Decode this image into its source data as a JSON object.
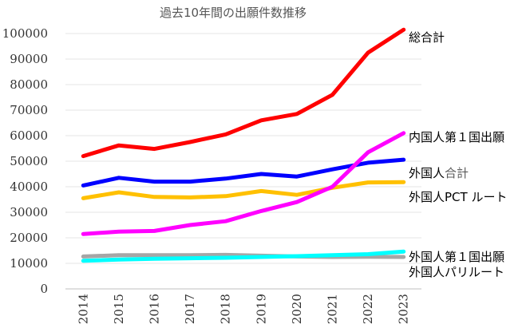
{
  "chart_data": {
    "type": "line",
    "title": "過去10年間の出願件数推移",
    "xlabel": "",
    "ylabel": "",
    "ylim": [
      0,
      100000
    ],
    "yticks": [
      "0",
      "10000",
      "20000",
      "30000",
      "40000",
      "50000",
      "60000",
      "70000",
      "80000",
      "90000",
      "100000"
    ],
    "categories": [
      "2014",
      "2015",
      "2016",
      "2017",
      "2018",
      "2019",
      "2020",
      "2021",
      "2022",
      "2023"
    ],
    "grid": true,
    "legend": "inline-right",
    "series": [
      {
        "name": "総合計",
        "color": "#ff0000",
        "values": [
          52000,
          56200,
          54800,
          57500,
          60500,
          66000,
          68500,
          76000,
          92500,
          101500
        ]
      },
      {
        "name": "内国人第１国出願",
        "color": "#ff00ff",
        "values": [
          21500,
          22400,
          22700,
          25000,
          26500,
          30500,
          34000,
          40000,
          53500,
          61000
        ]
      },
      {
        "name": "外国人合計",
        "color": "#0000ff",
        "values": [
          40500,
          43500,
          42000,
          42000,
          43200,
          45000,
          44000,
          46800,
          49400,
          50600
        ]
      },
      {
        "name": "外国人PCT ルート",
        "color": "#ffc000",
        "values": [
          35500,
          37800,
          36000,
          35800,
          36300,
          38300,
          36800,
          39600,
          41700,
          41800
        ]
      },
      {
        "name": "外国人第１国出願",
        "color": "#00ffff",
        "values": [
          11000,
          11500,
          11800,
          12000,
          12200,
          12500,
          12800,
          13200,
          13600,
          14600
        ]
      },
      {
        "name": "外国人パリルート",
        "color": "#a6a6a6",
        "values": [
          12700,
          13200,
          13200,
          13200,
          13300,
          13000,
          12700,
          12500,
          12600,
          12500
        ]
      }
    ],
    "label_colors": {
      "default": "#000000",
      "foreign_total_suffix": "#5a5a5a"
    }
  }
}
